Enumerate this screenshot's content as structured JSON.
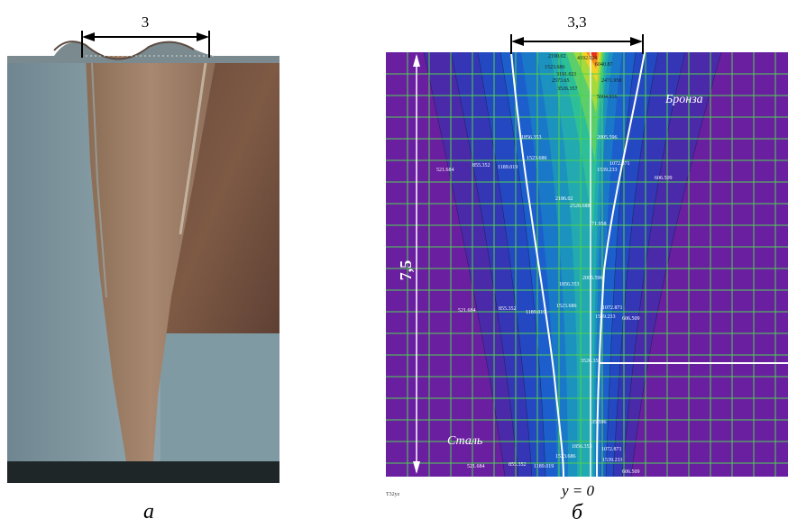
{
  "left_panel": {
    "dimension_label": "3",
    "caption": "а"
  },
  "right_panel": {
    "dimension_top": "3,3",
    "dimension_side": "7,5",
    "label_bronze": "Бронза",
    "label_steel": "Сталь",
    "axis_label": "y = 0",
    "figure_id": "T32yz",
    "caption": "б",
    "contour_labels": [
      "2190.02",
      "4192.024",
      "6040.87",
      "1523.686",
      "3191.021",
      "2573.65",
      "2471.958",
      "3526.357",
      "5604.916",
      "1856.353",
      "2005.596",
      "521.684",
      "855.352",
      "1189.019",
      "1539.233",
      "1072.871",
      "606.509",
      "2186.02",
      "2528.688",
      "71.958",
      "35.596",
      "3526.353"
    ]
  },
  "colors": {
    "background_purple": "#6a1fa0",
    "grid_green": "#4fd24f",
    "contour_white": "#ffffff"
  }
}
